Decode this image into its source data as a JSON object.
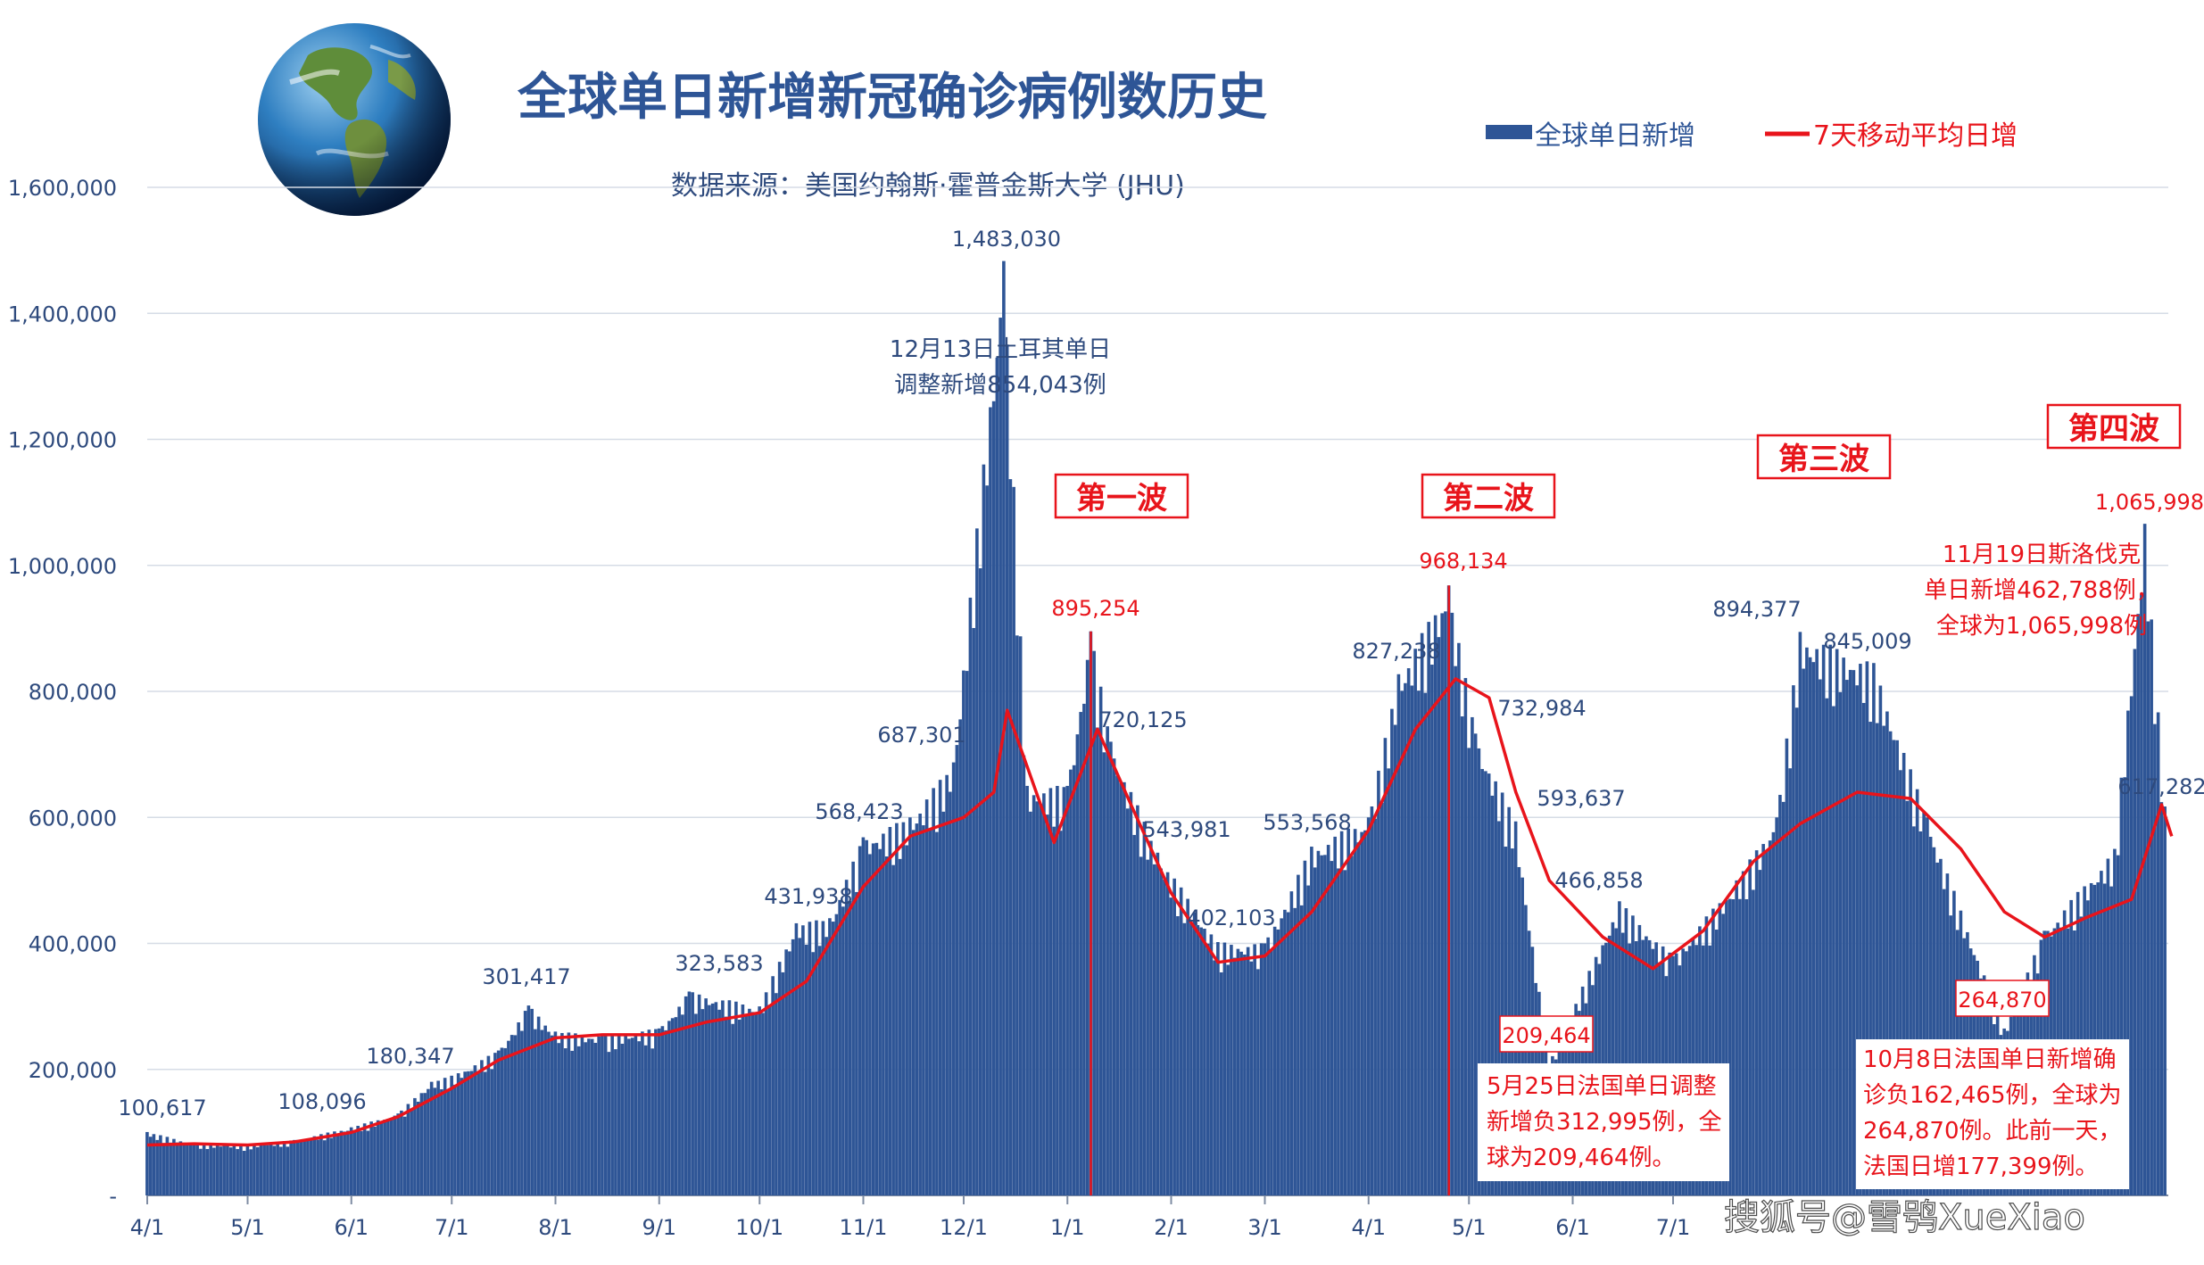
{
  "title": "全球单日新增新冠确诊病例数历史",
  "subtitle": "数据来源：美国约翰斯·霍普金斯大学 (JHU)",
  "watermark": "搜狐号@雪鸮XueXiao",
  "colors": {
    "bar": "#2e5596",
    "ma_line": "#e8141b",
    "annotation_red": "#e8141b",
    "text": "#2e4a7d",
    "grid": "#d6dce6"
  },
  "chart_data": {
    "type": "bar",
    "series": [
      {
        "name": "全球单日新增",
        "kind": "bar",
        "points": [
          [
            "2020-04-01",
            100617
          ],
          [
            "2020-04-15",
            83000
          ],
          [
            "2020-05-01",
            80000
          ],
          [
            "2020-05-15",
            88000
          ],
          [
            "2020-06-01",
            108096
          ],
          [
            "2020-06-15",
            130000
          ],
          [
            "2020-06-25",
            180347
          ],
          [
            "2020-07-01",
            190000
          ],
          [
            "2020-07-15",
            230000
          ],
          [
            "2020-07-24",
            301417
          ],
          [
            "2020-08-01",
            260000
          ],
          [
            "2020-08-15",
            255000
          ],
          [
            "2020-09-01",
            265000
          ],
          [
            "2020-09-10",
            323583
          ],
          [
            "2020-10-01",
            300000
          ],
          [
            "2020-10-12",
            431938
          ],
          [
            "2020-10-22",
            440000
          ],
          [
            "2020-11-01",
            568423
          ],
          [
            "2020-11-15",
            600000
          ],
          [
            "2020-11-28",
            687301
          ],
          [
            "2020-12-13",
            1483030
          ],
          [
            "2020-12-20",
            650000
          ],
          [
            "2021-01-01",
            650000
          ],
          [
            "2021-01-08",
            895254
          ],
          [
            "2021-01-14",
            720125
          ],
          [
            "2021-01-28",
            543981
          ],
          [
            "2021-02-15",
            402103
          ],
          [
            "2021-03-01",
            400000
          ],
          [
            "2021-03-15",
            553568
          ],
          [
            "2021-04-01",
            600000
          ],
          [
            "2021-04-10",
            827238
          ],
          [
            "2021-04-25",
            968134
          ],
          [
            "2021-05-03",
            732984
          ],
          [
            "2021-05-15",
            593637
          ],
          [
            "2021-05-25",
            209464
          ],
          [
            "2021-06-15",
            466858
          ],
          [
            "2021-07-01",
            380000
          ],
          [
            "2021-07-20",
            500000
          ],
          [
            "2021-08-01",
            600000
          ],
          [
            "2021-08-08",
            894377
          ],
          [
            "2021-08-30",
            845009
          ],
          [
            "2021-09-15",
            600000
          ],
          [
            "2021-10-08",
            264870
          ],
          [
            "2021-10-20",
            420000
          ],
          [
            "2021-11-10",
            550000
          ],
          [
            "2021-11-19",
            1065998
          ],
          [
            "2021-11-25",
            617282
          ]
        ]
      },
      {
        "name": "7天移动平均日增",
        "kind": "line",
        "points": [
          [
            "2020-04-01",
            80000
          ],
          [
            "2020-04-15",
            82000
          ],
          [
            "2020-05-01",
            80000
          ],
          [
            "2020-05-15",
            85000
          ],
          [
            "2020-06-01",
            100000
          ],
          [
            "2020-06-15",
            125000
          ],
          [
            "2020-07-01",
            170000
          ],
          [
            "2020-07-15",
            215000
          ],
          [
            "2020-08-01",
            250000
          ],
          [
            "2020-08-15",
            255000
          ],
          [
            "2020-09-01",
            255000
          ],
          [
            "2020-09-15",
            275000
          ],
          [
            "2020-10-01",
            290000
          ],
          [
            "2020-10-15",
            340000
          ],
          [
            "2020-11-01",
            490000
          ],
          [
            "2020-11-15",
            570000
          ],
          [
            "2020-12-01",
            600000
          ],
          [
            "2020-12-10",
            640000
          ],
          [
            "2020-12-14",
            770000
          ],
          [
            "2020-12-28",
            560000
          ],
          [
            "2021-01-10",
            740000
          ],
          [
            "2021-01-20",
            620000
          ],
          [
            "2021-02-01",
            480000
          ],
          [
            "2021-02-15",
            370000
          ],
          [
            "2021-03-01",
            380000
          ],
          [
            "2021-03-15",
            450000
          ],
          [
            "2021-04-01",
            580000
          ],
          [
            "2021-04-15",
            740000
          ],
          [
            "2021-04-27",
            820000
          ],
          [
            "2021-05-07",
            790000
          ],
          [
            "2021-05-15",
            640000
          ],
          [
            "2021-05-25",
            500000
          ],
          [
            "2021-06-10",
            410000
          ],
          [
            "2021-06-25",
            360000
          ],
          [
            "2021-07-10",
            420000
          ],
          [
            "2021-07-25",
            530000
          ],
          [
            "2021-08-08",
            590000
          ],
          [
            "2021-08-25",
            640000
          ],
          [
            "2021-09-10",
            630000
          ],
          [
            "2021-09-25",
            550000
          ],
          [
            "2021-10-08",
            450000
          ],
          [
            "2021-10-20",
            410000
          ],
          [
            "2021-11-01",
            440000
          ],
          [
            "2021-11-15",
            470000
          ],
          [
            "2021-11-24",
            620000
          ],
          [
            "2021-11-27",
            570000
          ]
        ]
      }
    ],
    "yaxis": {
      "min": 0,
      "max": 1600000,
      "ticks": [
        "-",
        "200,000",
        "400,000",
        "600,000",
        "800,000",
        "1,000,000",
        "1,200,000",
        "1,400,000",
        "1,600,000"
      ]
    },
    "xaxis": {
      "ticks": [
        "4/1",
        "5/1",
        "6/1",
        "7/1",
        "8/1",
        "9/1",
        "10/1",
        "11/1",
        "12/1",
        "1/1",
        "2/1",
        "3/1",
        "4/1",
        "5/1",
        "6/1",
        "7/1"
      ]
    },
    "legend": {
      "placement": "top-right",
      "items": [
        "全球单日新增",
        "7天移动平均日增"
      ]
    },
    "grid": true,
    "data_labels": [
      "100,617",
      "108,096",
      "180,347",
      "301,417",
      "323,583",
      "431,938",
      "568,423",
      "687,301",
      "1,483,030",
      "895,254",
      "720,125",
      "543,981",
      "402,103",
      "553,568",
      "827,238",
      "968,134",
      "732,984",
      "593,637",
      "209,464",
      "466,858",
      "894,377",
      "845,009",
      "264,870",
      "1,065,998",
      "617,282"
    ],
    "wave_labels": [
      "第一波",
      "第二波",
      "第三波",
      "第四波"
    ],
    "annotations": {
      "turkey": [
        "12月13日土耳其单日",
        "调整新增854,043例"
      ],
      "france_may": [
        "5月25日法国单日调整",
        "新增负312,995例，全",
        "球为209,464例。"
      ],
      "slovakia": [
        "11月19日斯洛伐克",
        "单日新增462,788例，",
        "全球为1,065,998例"
      ],
      "france_oct": [
        "10月8日法国单日新增确",
        "诊负162,465例，全球为",
        "264,870例。此前一天，",
        "法国日增177,399例。"
      ]
    }
  }
}
